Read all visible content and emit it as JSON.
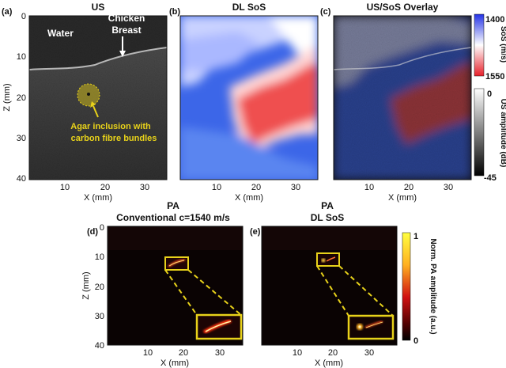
{
  "panels": {
    "a": {
      "label": "(a)",
      "title": "US",
      "xlabel": "X (mm)",
      "ylabel": "Z (mm)",
      "xticks": [
        "10",
        "20",
        "30"
      ],
      "yticks": [
        "0",
        "10",
        "20",
        "30",
        "40"
      ]
    },
    "b": {
      "label": "(b)",
      "title": "DL SoS",
      "xlabel": "X (mm)",
      "xticks": [
        "10",
        "20",
        "30"
      ]
    },
    "c": {
      "label": "(c)",
      "title": "US/SoS Overlay",
      "xlabel": "X (mm)",
      "xticks": [
        "10",
        "20",
        "30"
      ]
    },
    "d": {
      "label": "(d)",
      "title": "PA",
      "subtitle": "Conventional c=1540 m/s",
      "xlabel": "X (mm)",
      "ylabel": "Z (mm)",
      "xticks": [
        "10",
        "20",
        "30"
      ],
      "yticks": [
        "0",
        "10",
        "20",
        "30",
        "40"
      ]
    },
    "e": {
      "label": "(e)",
      "title": "PA",
      "subtitle": "DL SoS",
      "xlabel": "X (mm)",
      "xticks": [
        "10",
        "20",
        "30"
      ]
    }
  },
  "annotations": {
    "water": "Water",
    "chicken_line1": "Chicken",
    "chicken_line2": "Breast",
    "agar_line1": "Agar inclusion with",
    "agar_line2": "carbon fibre bundles"
  },
  "colorbars": {
    "sos": {
      "label": "SoS (m/s)",
      "max": "1400",
      "min": "1550",
      "top_color": "#2433e6",
      "bottom_color": "#e8202a"
    },
    "us": {
      "label": "US amplitude (dB)",
      "max": "0",
      "min": "-45"
    },
    "pa": {
      "label": "Norm. PA amplitude (a.u.)",
      "max": "1",
      "min": "0"
    }
  },
  "colors": {
    "highlight": "#e8d21a"
  }
}
